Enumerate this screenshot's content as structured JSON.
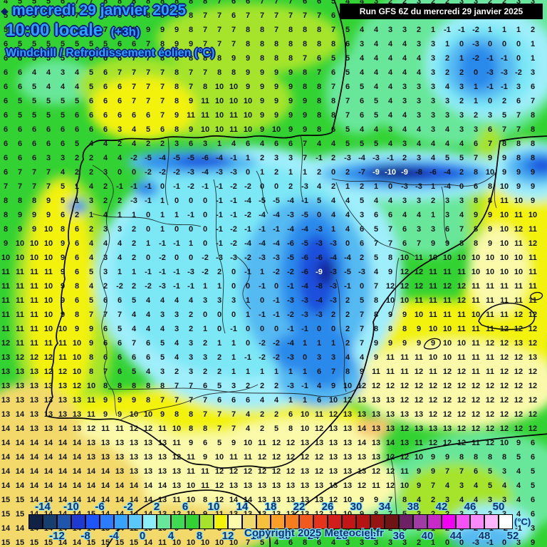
{
  "header": {
    "bullet": "◆",
    "date_line": "mercredi 29 janvier 2025",
    "time_line": "10:00 locale",
    "time_suffix": "(+3h)",
    "subtitle": "Windchill / Refroidissement éolien (°C)"
  },
  "run_box": {
    "text": "Run GFS 6Z du mercredi 29 janvier 2025"
  },
  "footer": {
    "copyright": "Copyright 2025 Meteociel.fr",
    "unit_label": "(°C)"
  },
  "colors": {
    "header_blue": "#2aa2ff",
    "header_outline": "#0a1a7e",
    "run_box_bg": "#000000",
    "run_box_text": "#ffffff",
    "scale_label_navy": "#16306e",
    "scale_label_glow": "#7fe3ff",
    "number_color": "#10141a",
    "cold_core_number_color": "#ffffff"
  },
  "scale": {
    "min": -16,
    "max": 52,
    "step": 2,
    "top_labels": [
      "-14",
      "-10",
      "-6",
      "-2",
      "2",
      "6",
      "10",
      "14",
      "18",
      "22",
      "26",
      "30",
      "34",
      "38",
      "42",
      "46",
      "50"
    ],
    "bottom_labels": [
      "-12",
      "-8",
      "-4",
      "0",
      "4",
      "8",
      "12",
      "16",
      "20",
      "24",
      "28",
      "32",
      "36",
      "40",
      "44",
      "48",
      "52"
    ],
    "cell_colors": [
      "#0f2245",
      "#15406e",
      "#1f55aa",
      "#1e3ad0",
      "#1e55fa",
      "#2d7bff",
      "#38a3fb",
      "#5ac8fb",
      "#8deefb",
      "#68e79a",
      "#40da52",
      "#32d232",
      "#a5e42a",
      "#f2f20a",
      "#fafaaa",
      "#f2d96b",
      "#f7c13e",
      "#fa9e28",
      "#f57d1e",
      "#f2591e",
      "#e6331c",
      "#d21e1b",
      "#c31616",
      "#b41414",
      "#961414",
      "#6e1414",
      "#6e2065",
      "#a03ca3",
      "#c82ac8",
      "#f200f2",
      "#f551f5",
      "#fa8afa",
      "#fcb6fc",
      "#ffffff"
    ]
  },
  "map": {
    "white_number_threshold": -9,
    "grid_rows": [
      "4 5 5 5 6 7 7 8 8 8 8 8 8 8 8 7 6 6 7 7 7 6 6 5 4 4 3 2 2 3 2 2 3 3 2 2 3 3",
      "5 5 5 5 6 7 7 8 8 8 8 8 8 8 7 7 6 7 7 7 7 7 7 6 3 4 4 4 3 3 2 1 0 1 1 1 2 2",
      "5 5 5 5 6 6 7 7 8 8 9 9 9 8 7 7 7 8 8 7 8 8 8 7 5 4 4 3 3 2 1 -1 -1 -2 1 1 1 2",
      "6 5 5 5 5 5 5 5 6 6 7 8 9 9 7 7 7 8 8 8 8 8 8 8 6 3 4 4 4 3 3 1 0 -3 0 0 0 1",
      "6 6 5 5 5 5 6 6 6 7 7 8 8 8 8 8 9 9 8 8 8 7 6 5 5 4 4 4 4 4 3 2 1 -2 -1 -1 0 1",
      "6 6 4 4 3 4 5 6 7 7 7 7 8 7 7 8 8 9 9 9 9 8 7 6 5 4 4 4 4 4 3 2 2 0 -3 -3 -2 3",
      "6 6 5 4 4 4 5 6 6 7 7 7 8 7 8 10 10 9 9 9 9 8 8 7 6 5 4 4 3 3 3 4 3 1 -1 -1 3 6",
      "6 5 5 5 5 5 6 6 6 7 7 7 8 9 11 10 10 10 9 9 9 9 8 8 7 6 5 4 3 3 3 3 2 1 0 2 6 7",
      "6 5 5 5 5 6 6 6 6 6 6 7 9 11 11 10 11 10 9 9 9 9 8 8 7 6 5 4 4 3 3 3 3 2 3 5 7 8",
      "6 6 6 6 6 6 6 6 3 4 5 6 8 9 10 10 11 10 9 10 9 9 8 6 5 4 4 3 4 4 3 4 3 3 6 7 7 8",
      "6 6 6 6 6 5 4 4 2 4 2 2 3 6 3 1 4 6 4 6 6 7 4 4 5 5 5 4 3 4 4 4 4 6 7 8 8 8",
      "6 6 6 3 3 2 2 4 4 -2 -5 -4 -5 -5 -6 -4 -1 1 2 3 3 7 -1 2 -3 -4 -3 -1 2 3 4 5 5 7 9 9 8 8",
      "6 7 7 7 4 2 2 3 0 0 -2 -2 -2 -3 -4 -3 -3 0 1 2 1 1 2 0 2 -7 -9 -10 -9 -8 -6 -4 2 8 10 9 9 9",
      "7 7 7 7 5 1 4 2 -1 -1 -1 0 -1 -2 -1 -1 -2 -2 0 0 2 -3 4 2 1 2 1 0 -3 -3 1 -4 0 6 8 10 9 9",
      "8 8 8 9 5 1 3 2 2 -3 -1 1 0 0 0 -1 -1 -4 -5 -5 -4 -1 5 4 4 5 4 4 3 3 2 3 3 8 8 11 10 9",
      "8 9 9 9 6 2 1 4 1 1 0 1 1 -1 0 -1 -1 -2 -4 -4 -3 -5 0 4 4 3 6 6 4 4 1 3 4 9 9 10 11 10",
      "8 9 9 10 8 6 2 3 3 2 0 1 0 0 0 -1 -2 -1 -1 -1 -4 -4 -3 1 4 6 5 7 6 3 3 6 7 8 9 10 12 11",
      "9 10 10 10 9 6 4 4 4 2 1 -1 -1 1 0 -1 -2 -4 -4 -4 -6 -5 -3 -3 0 6 7 7 6 7 9 9 8 8 9 10 11 12",
      "10 10 10 10 9 6 4 3 4 2 0 -2 0 0 -2 -3 -3 -2 -3 -3 -5 -6 -6 -4 -4 2 5 8 10 11 10 10 10 10 10 10 10 11",
      "11 11 11 11 9 6 5 3 1 1 -1 -1 -1 -3 -2 2 0 -1 1 -2 -2 -6 -9 -3 -5 -3 4 9 12 12 11 11 11 10 10 10 10 11",
      "11 11 11 10 9 8 4 2 -2 2 -2 -3 -1 -1 1 1 0 0 -1 0 -1 -4 -8 -3 -1 0 7 12 12 12 11 12 12 11 11 11 11 11",
      "11 11 11 10 9 6 5 6 6 5 4 4 4 4 3 3 3 1 0 -1 -3 -3 -4 -3 2 5 8 10 10 11 11 11 12 11 11 11 11 11",
      "11 11 11 10 9 8 7 7 7 4 4 3 3 2 0 0 0 1 -1 -1 -2 -3 -3 2 2 7 8 9 9 10 11 11 11 10 11 11 12 12",
      "11 11 11 10 10 9 9 6 5 4 4 4 3 2 1 0 -1 0 0 0 -1 -1 0 0 2 7 8 8 8 9 10 10 11 11 11 12 12 12",
      "12 11 11 11 11 10 9 6 6 7 6 5 4 3 2 1 1 0 -2 -2 -4 1 1 1 2 7 9 9 9 9 9 10 10 11 12 12 13 12",
      "13 12 12 12 11 10 8 6 6 6 6 5 4 3 3 2 1 -1 -2 -2 -3 0 3 3 4 4 9 11 11 11 10 10 11 11 11 12 12 13",
      "13 13 13 12 12 10 8 7 6 5 4 3 2 3 2 2 1 1 1 1 1 1 6 7 8 9 11 11 11 12 11 12 12 11 11 12 12 12",
      "13 13 13 13 13 12 10 8 8 8 8 8 7 7 6 5 3 2 2 2 -3 -1 4 9 10 12 12 12 12 12 12 12 12 12 12 12 12 12",
      "13 13 13 13 13 13 11 9 9 9 8 7 7 7 7 6 6 6 4 4 1 1 6 10 12 13 13 13 12 12 12 12 12 12 12 12 12 12",
      "13 14 13 13 13 13 11 9 9 10 10 9 8 8 7 7 7 4 2 2 6 10 11 12 13 13 13 13 13 13 12 12 12 12 12 12 12 12",
      "14 14 13 13 14 13 12 11 11 12 12 11 10 8 8 7 7 4 2 5 8 10 12 13 13 14 13 13 12 13 13 13 12 12 12 12 12 12",
      "14 14 14 14 14 14 13 13 13 13 13 13 11 9 6 5 9 10 11 12 12 13 13 13 13 14 13 14 13 11 12 12 12 11 12 10 9 6",
      "14 14 14 14 14 14 13 13 13 13 13 13 12 11 9 10 11 11 12 12 12 12 12 13 13 13 13 12 12 10 9 9 8 8 8 8 5 6",
      "14 14 14 14 14 14 14 14 13 13 13 13 13 11 11 12 12 12 12 12 12 13 12 13 13 13 12 12 11 9 9 7 7 6 5 3 4 5",
      "14 14 14 14 14 14 14 14 14 14 14 14 13 10 11 12 13 13 13 13 13 13 13 13 13 12 11 12 10 9 7 4 3 4 5 4 4 5",
      "15 15 14 14 14 14 14 14 14 14 14 13 11 10 8 12 14 14 13 13 13 13 13 12 10 9 9 7 8 4 2 3 4 4 3 3 4 6",
      "15 15 14 14 14 14 15 14 14 14 14 13 12 10 9 11 13 13 13 13 13 13 12 11 10 9 8 7 5 3 2 2 3 3 3 3 4 6",
      "14 14 14 14 14 14 14 15 14 12 10 10 9 9 7 3 5 9 9 8 8 8 9 0 5 5 5 2 3 2 1 2 3 2 -1 -2 -1 3",
      "15 15 15 15 14 14 15 15 15 15 14 11 10 10 10 10 10 7 5 4 6 8 6 4 3 3 3 3 3 2 1 0 0 -3 -1 0 3 9"
    ]
  }
}
